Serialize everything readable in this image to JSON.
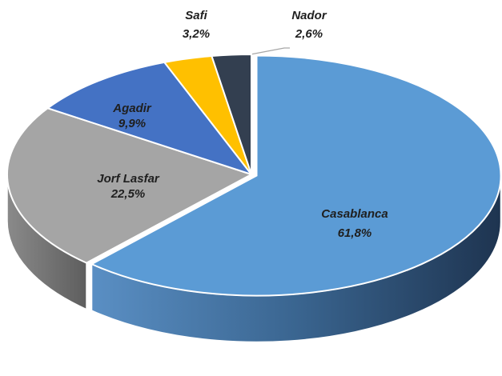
{
  "chart_data": {
    "type": "pie3d",
    "categories": [
      "Casablanca",
      "Jorf Lasfar",
      "Agadir",
      "Safi",
      "Nador"
    ],
    "values": [
      61.8,
      22.5,
      9.9,
      3.2,
      2.6
    ],
    "value_labels": [
      "61,8%",
      "22,5%",
      "9,9%",
      "3,2%",
      "2,6%"
    ],
    "colors": [
      "#5b9bd5",
      "#a5a5a5",
      "#4472c4",
      "#ffc000",
      "#333f50"
    ],
    "side_colors": [
      "url(#casaSide)",
      "url(#greySide)",
      "#2f5597",
      "#bf9000",
      "#222a35"
    ]
  }
}
